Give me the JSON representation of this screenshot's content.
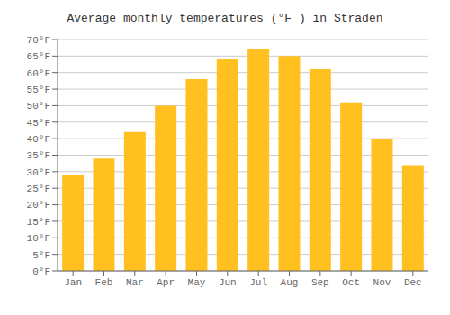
{
  "chart_data": {
    "type": "bar",
    "title": "Average monthly temperatures (°F ) in Straden",
    "categories": [
      "Jan",
      "Feb",
      "Mar",
      "Apr",
      "May",
      "Jun",
      "Jul",
      "Aug",
      "Sep",
      "Oct",
      "Nov",
      "Dec"
    ],
    "values": [
      29,
      34,
      42,
      50,
      58,
      64,
      67,
      65,
      61,
      51,
      40,
      32
    ],
    "color": "#FFC020",
    "ylim": [
      0,
      70
    ],
    "yticks": [
      {
        "value": 0,
        "label": "0°F"
      },
      {
        "value": 5,
        "label": "5°F"
      },
      {
        "value": 10,
        "label": "10°F"
      },
      {
        "value": 15,
        "label": "15°F"
      },
      {
        "value": 20,
        "label": "20°F"
      },
      {
        "value": 25,
        "label": "25°F"
      },
      {
        "value": 30,
        "label": "30°F"
      },
      {
        "value": 35,
        "label": "35°F"
      },
      {
        "value": 40,
        "label": "40°F"
      },
      {
        "value": 45,
        "label": "45°F"
      },
      {
        "value": 50,
        "label": "50°F"
      },
      {
        "value": 55,
        "label": "55°F"
      },
      {
        "value": 60,
        "label": "60°F"
      },
      {
        "value": 65,
        "label": "65°F"
      },
      {
        "value": 70,
        "label": "70°F"
      }
    ],
    "grid": true
  }
}
